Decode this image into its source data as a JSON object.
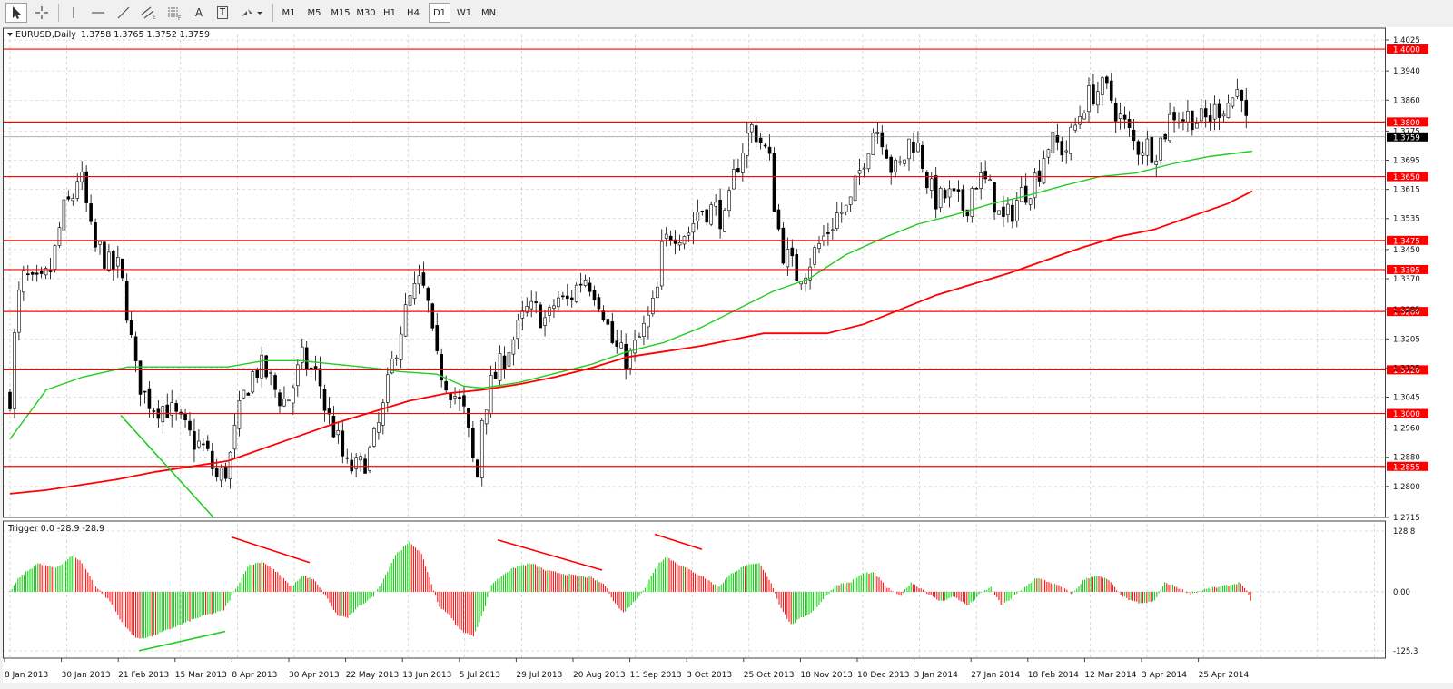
{
  "toolbar": {
    "tools": [
      {
        "name": "cursor-icon"
      },
      {
        "name": "crosshair-icon"
      },
      {
        "name": "vertical-line-icon"
      },
      {
        "name": "horizontal-line-icon"
      },
      {
        "name": "trendline-icon"
      },
      {
        "name": "equidistant-channel-icon"
      },
      {
        "name": "fibonacci-retracement-icon"
      },
      {
        "name": "text-icon",
        "label": "A"
      },
      {
        "name": "text-label-icon",
        "label": "T"
      },
      {
        "name": "arrows-icon"
      }
    ],
    "timeframes": [
      "M1",
      "M5",
      "M15",
      "M30",
      "H1",
      "H4",
      "D1",
      "W1",
      "MN"
    ],
    "active_timeframe": "D1"
  },
  "header": {
    "symbol": "EURUSD,Daily",
    "ohlc": "1.3758 1.3765 1.3752 1.3759"
  },
  "indicator": {
    "label": "Trigger 0.0 -28.9 -28.9",
    "axis_labels": [
      "128.8",
      "0.00",
      "-125.3"
    ]
  },
  "colors": {
    "bull": "#00cc00",
    "bear": "#ff0000",
    "ma_fast": "#22cc22",
    "ma_slow": "#ff0000",
    "level_line": "#ff0000",
    "grid": "#c0c0c0"
  },
  "chart_data": {
    "type": "candlestick",
    "price_axis_ticks": [
      "1.4025",
      "1.3940",
      "1.3860",
      "1.3775",
      "1.3695",
      "1.3615",
      "1.3535",
      "1.3450",
      "1.3370",
      "1.3285",
      "1.3205",
      "1.3125",
      "1.3045",
      "1.2960",
      "1.2880",
      "1.2800",
      "1.2715"
    ],
    "ylim": [
      1.2715,
      1.4025
    ],
    "horizontal_levels": [
      "1.4000",
      "1.3800",
      "1.3650",
      "1.3475",
      "1.3395",
      "1.3280",
      "1.3120",
      "1.3000",
      "1.2855"
    ],
    "last_price": "1.3759",
    "date_labels": [
      "8 Jan 2013",
      "30 Jan 2013",
      "21 Feb 2013",
      "15 Mar 2013",
      "8 Apr 2013",
      "30 Apr 2013",
      "22 May 2013",
      "13 Jun 2013",
      "5 Jul 2013",
      "29 Jul 2013",
      "20 Aug 2013",
      "11 Sep 2013",
      "3 Oct 2013",
      "25 Oct 2013",
      "18 Nov 2013",
      "10 Dec 2013",
      "3 Jan 2014",
      "27 Jan 2014",
      "18 Feb 2014",
      "12 Mar 2014",
      "3 Apr 2014",
      "25 Apr 2014"
    ],
    "close_path": [
      [
        0,
        1.305
      ],
      [
        8,
        1.33
      ],
      [
        16,
        1.338
      ],
      [
        24,
        1.335
      ],
      [
        34,
        1.335
      ],
      [
        46,
        1.34
      ],
      [
        58,
        1.355
      ],
      [
        70,
        1.36
      ],
      [
        76,
        1.367
      ],
      [
        82,
        1.36
      ],
      [
        92,
        1.345
      ],
      [
        100,
        1.345
      ],
      [
        110,
        1.34
      ],
      [
        120,
        1.34
      ],
      [
        128,
        1.33
      ],
      [
        138,
        1.312
      ],
      [
        148,
        1.305
      ],
      [
        160,
        1.302
      ],
      [
        172,
        1.302
      ],
      [
        185,
        1.298
      ],
      [
        200,
        1.293
      ],
      [
        215,
        1.29
      ],
      [
        228,
        1.282
      ],
      [
        240,
        1.285
      ],
      [
        248,
        1.295
      ],
      [
        255,
        1.303
      ],
      [
        265,
        1.31
      ],
      [
        275,
        1.313
      ],
      [
        285,
        1.31
      ],
      [
        295,
        1.305
      ],
      [
        305,
        1.303
      ],
      [
        315,
        1.31
      ],
      [
        322,
        1.315
      ],
      [
        330,
        1.312
      ],
      [
        340,
        1.31
      ],
      [
        348,
        1.3
      ],
      [
        358,
        1.295
      ],
      [
        370,
        1.285
      ],
      [
        385,
        1.285
      ],
      [
        398,
        1.29
      ],
      [
        410,
        1.3
      ],
      [
        422,
        1.315
      ],
      [
        432,
        1.325
      ],
      [
        442,
        1.332
      ],
      [
        452,
        1.336
      ],
      [
        460,
        1.33
      ],
      [
        468,
        1.315
      ],
      [
        478,
        1.31
      ],
      [
        490,
        1.305
      ],
      [
        500,
        1.3
      ],
      [
        508,
        1.29
      ],
      [
        514,
        1.28
      ],
      [
        520,
        1.3
      ],
      [
        530,
        1.308
      ],
      [
        540,
        1.313
      ],
      [
        548,
        1.318
      ],
      [
        558,
        1.322
      ],
      [
        568,
        1.328
      ],
      [
        580,
        1.328
      ],
      [
        592,
        1.325
      ],
      [
        602,
        1.332
      ],
      [
        612,
        1.33
      ],
      [
        622,
        1.334
      ],
      [
        632,
        1.338
      ],
      [
        642,
        1.335
      ],
      [
        652,
        1.33
      ],
      [
        662,
        1.32
      ],
      [
        672,
        1.316
      ],
      [
        682,
        1.315
      ],
      [
        692,
        1.32
      ],
      [
        702,
        1.325
      ],
      [
        712,
        1.332
      ],
      [
        718,
        1.345
      ],
      [
        728,
        1.35
      ],
      [
        738,
        1.35
      ],
      [
        748,
        1.35
      ],
      [
        758,
        1.356
      ],
      [
        768,
        1.356
      ],
      [
        778,
        1.356
      ],
      [
        788,
        1.352
      ],
      [
        798,
        1.366
      ],
      [
        808,
        1.374
      ],
      [
        818,
        1.379
      ],
      [
        828,
        1.374
      ],
      [
        836,
        1.37
      ],
      [
        842,
        1.357
      ],
      [
        850,
        1.345
      ],
      [
        858,
        1.342
      ],
      [
        866,
        1.338
      ],
      [
        876,
        1.34
      ],
      [
        888,
        1.345
      ],
      [
        900,
        1.35
      ],
      [
        912,
        1.355
      ],
      [
        924,
        1.356
      ],
      [
        934,
        1.365
      ],
      [
        942,
        1.372
      ],
      [
        952,
        1.379
      ],
      [
        962,
        1.376
      ],
      [
        972,
        1.366
      ],
      [
        982,
        1.368
      ],
      [
        992,
        1.376
      ],
      [
        1002,
        1.372
      ],
      [
        1012,
        1.362
      ],
      [
        1022,
        1.358
      ],
      [
        1032,
        1.36
      ],
      [
        1042,
        1.358
      ],
      [
        1052,
        1.356
      ],
      [
        1062,
        1.364
      ],
      [
        1072,
        1.364
      ],
      [
        1082,
        1.36
      ],
      [
        1092,
        1.352
      ],
      [
        1102,
        1.355
      ],
      [
        1112,
        1.36
      ],
      [
        1122,
        1.362
      ],
      [
        1132,
        1.366
      ],
      [
        1142,
        1.374
      ],
      [
        1152,
        1.374
      ],
      [
        1162,
        1.372
      ],
      [
        1172,
        1.378
      ],
      [
        1182,
        1.385
      ],
      [
        1192,
        1.388
      ],
      [
        1200,
        1.389
      ],
      [
        1210,
        1.388
      ],
      [
        1220,
        1.382
      ],
      [
        1230,
        1.378
      ],
      [
        1240,
        1.373
      ],
      [
        1250,
        1.374
      ],
      [
        1260,
        1.372
      ],
      [
        1270,
        1.376
      ],
      [
        1280,
        1.383
      ],
      [
        1290,
        1.381
      ],
      [
        1300,
        1.382
      ],
      [
        1310,
        1.38
      ],
      [
        1320,
        1.381
      ],
      [
        1330,
        1.384
      ],
      [
        1340,
        1.385
      ],
      [
        1350,
        1.388
      ],
      [
        1356,
        1.39
      ],
      [
        1360,
        1.38
      ],
      [
        1366,
        1.376
      ]
    ],
    "ma_fast": [
      [
        0,
        1.293
      ],
      [
        40,
        1.3065
      ],
      [
        80,
        1.31
      ],
      [
        130,
        1.3128
      ],
      [
        200,
        1.3128
      ],
      [
        240,
        1.3128
      ],
      [
        280,
        1.3145
      ],
      [
        320,
        1.3145
      ],
      [
        360,
        1.3135
      ],
      [
        400,
        1.3125
      ],
      [
        430,
        1.3115
      ],
      [
        470,
        1.3108
      ],
      [
        500,
        1.3075
      ],
      [
        520,
        1.307
      ],
      [
        560,
        1.3085
      ],
      [
        600,
        1.311
      ],
      [
        640,
        1.3135
      ],
      [
        680,
        1.317
      ],
      [
        720,
        1.3195
      ],
      [
        760,
        1.3235
      ],
      [
        800,
        1.3285
      ],
      [
        840,
        1.3335
      ],
      [
        880,
        1.337
      ],
      [
        920,
        1.3435
      ],
      [
        960,
        1.348
      ],
      [
        1000,
        1.352
      ],
      [
        1040,
        1.3545
      ],
      [
        1080,
        1.3575
      ],
      [
        1120,
        1.3598
      ],
      [
        1160,
        1.3625
      ],
      [
        1200,
        1.365
      ],
      [
        1240,
        1.366
      ],
      [
        1280,
        1.3685
      ],
      [
        1320,
        1.3705
      ],
      [
        1368,
        1.372
      ]
    ],
    "ma_slow": [
      [
        0,
        1.278
      ],
      [
        40,
        1.279
      ],
      [
        80,
        1.2805
      ],
      [
        120,
        1.282
      ],
      [
        160,
        1.284
      ],
      [
        200,
        1.2855
      ],
      [
        240,
        1.287
      ],
      [
        280,
        1.2905
      ],
      [
        320,
        1.294
      ],
      [
        360,
        1.2975
      ],
      [
        400,
        1.3005
      ],
      [
        440,
        1.3035
      ],
      [
        480,
        1.3055
      ],
      [
        520,
        1.3065
      ],
      [
        560,
        1.308
      ],
      [
        600,
        1.31
      ],
      [
        640,
        1.3125
      ],
      [
        680,
        1.3155
      ],
      [
        720,
        1.317
      ],
      [
        760,
        1.3185
      ],
      [
        800,
        1.3205
      ],
      [
        830,
        1.322
      ],
      [
        860,
        1.322
      ],
      [
        900,
        1.322
      ],
      [
        940,
        1.3245
      ],
      [
        980,
        1.3285
      ],
      [
        1020,
        1.3325
      ],
      [
        1060,
        1.3355
      ],
      [
        1100,
        1.3385
      ],
      [
        1140,
        1.342
      ],
      [
        1180,
        1.3455
      ],
      [
        1220,
        1.3485
      ],
      [
        1260,
        1.3505
      ],
      [
        1300,
        1.354
      ],
      [
        1340,
        1.3575
      ],
      [
        1368,
        1.361
      ]
    ],
    "oscillator": [
      [
        0,
        0
      ],
      [
        10,
        30
      ],
      [
        30,
        60
      ],
      [
        50,
        50
      ],
      [
        70,
        78
      ],
      [
        80,
        60
      ],
      [
        95,
        10
      ],
      [
        110,
        -20
      ],
      [
        125,
        -70
      ],
      [
        140,
        -100
      ],
      [
        155,
        -95
      ],
      [
        175,
        -80
      ],
      [
        200,
        -60
      ],
      [
        215,
        -50
      ],
      [
        235,
        -40
      ],
      [
        250,
        10
      ],
      [
        262,
        55
      ],
      [
        278,
        65
      ],
      [
        295,
        40
      ],
      [
        310,
        10
      ],
      [
        322,
        35
      ],
      [
        335,
        25
      ],
      [
        348,
        -10
      ],
      [
        360,
        -50
      ],
      [
        372,
        -55
      ],
      [
        385,
        -30
      ],
      [
        400,
        -10
      ],
      [
        412,
        30
      ],
      [
        425,
        80
      ],
      [
        440,
        105
      ],
      [
        452,
        85
      ],
      [
        462,
        30
      ],
      [
        472,
        -30
      ],
      [
        482,
        -45
      ],
      [
        495,
        -80
      ],
      [
        510,
        -95
      ],
      [
        522,
        -40
      ],
      [
        530,
        15
      ],
      [
        545,
        40
      ],
      [
        560,
        55
      ],
      [
        575,
        60
      ],
      [
        590,
        45
      ],
      [
        605,
        40
      ],
      [
        620,
        35
      ],
      [
        640,
        30
      ],
      [
        655,
        15
      ],
      [
        665,
        -20
      ],
      [
        675,
        -45
      ],
      [
        688,
        -20
      ],
      [
        700,
        10
      ],
      [
        712,
        55
      ],
      [
        722,
        75
      ],
      [
        735,
        60
      ],
      [
        750,
        45
      ],
      [
        765,
        30
      ],
      [
        780,
        10
      ],
      [
        795,
        40
      ],
      [
        810,
        55
      ],
      [
        825,
        60
      ],
      [
        838,
        20
      ],
      [
        848,
        -30
      ],
      [
        860,
        -70
      ],
      [
        872,
        -55
      ],
      [
        885,
        -40
      ],
      [
        898,
        -10
      ],
      [
        910,
        15
      ],
      [
        925,
        20
      ],
      [
        940,
        40
      ],
      [
        952,
        40
      ],
      [
        965,
        10
      ],
      [
        980,
        -10
      ],
      [
        992,
        20
      ],
      [
        1005,
        5
      ],
      [
        1015,
        -10
      ],
      [
        1025,
        -20
      ],
      [
        1040,
        -10
      ],
      [
        1055,
        -30
      ],
      [
        1068,
        -5
      ],
      [
        1080,
        10
      ],
      [
        1092,
        -30
      ],
      [
        1105,
        -10
      ],
      [
        1118,
        10
      ],
      [
        1130,
        30
      ],
      [
        1145,
        20
      ],
      [
        1158,
        10
      ],
      [
        1170,
        -5
      ],
      [
        1182,
        25
      ],
      [
        1195,
        35
      ],
      [
        1210,
        25
      ],
      [
        1222,
        -5
      ],
      [
        1235,
        -20
      ],
      [
        1248,
        -25
      ],
      [
        1260,
        -20
      ],
      [
        1272,
        20
      ],
      [
        1285,
        10
      ],
      [
        1300,
        -5
      ],
      [
        1315,
        5
      ],
      [
        1330,
        10
      ],
      [
        1345,
        15
      ],
      [
        1355,
        20
      ],
      [
        1362,
        0
      ],
      [
        1368,
        -28.9
      ]
    ],
    "trend_annotations": [
      {
        "pane": "price",
        "color": "green"
      },
      {
        "pane": "oscillator",
        "color": "red"
      },
      {
        "pane": "oscillator",
        "color": "red"
      },
      {
        "pane": "oscillator",
        "color": "red"
      },
      {
        "pane": "oscillator",
        "color": "green"
      }
    ]
  }
}
